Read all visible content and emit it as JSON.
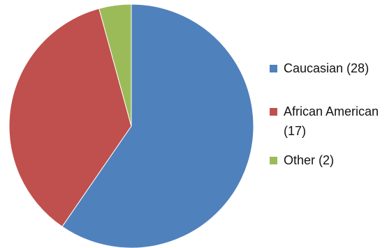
{
  "chart_data": {
    "type": "pie",
    "categories": [
      "Caucasian",
      "African American",
      "Other"
    ],
    "values": [
      28,
      17,
      2
    ],
    "colors": [
      "#4f81bd",
      "#c0504d",
      "#9bbb59"
    ],
    "start_angle_deg": 0,
    "direction": "clockwise",
    "legend_position": "right",
    "legend_labels": [
      "Caucasian (28)",
      "African American (17)",
      "Other (2)"
    ]
  }
}
